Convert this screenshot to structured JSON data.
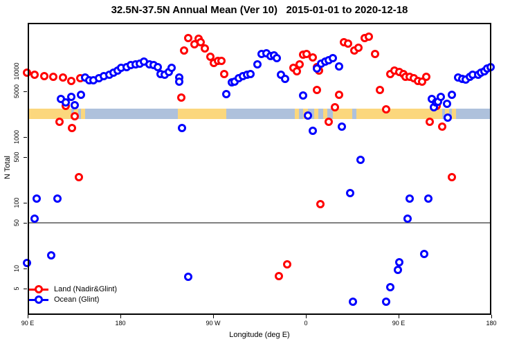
{
  "title": "32.5N-37.5N Annual Mean (Ver 10)   2015-01-01 to 2020-12-18",
  "chart_data": {
    "type": "scatter",
    "title": "32.5N-37.5N Annual Mean (Ver 10)   2015-01-01 to 2020-12-18",
    "xlabel": "Longitude (deg E)",
    "ylabel": "N Total",
    "x_axis": {
      "range_deg": [
        90,
        540
      ],
      "ticks_deg": [
        90,
        180,
        270,
        360,
        450,
        540
      ],
      "tick_labels": [
        "90 E",
        "180",
        "90 W",
        "0",
        "90 E",
        "180"
      ]
    },
    "y_axis": {
      "scale": "log10",
      "ticks": [
        10000,
        5000,
        1000,
        500,
        100,
        50,
        10,
        5
      ],
      "tick_labels": [
        "10000",
        "5000",
        "1000",
        "500",
        "100",
        "50",
        "10",
        "5"
      ]
    },
    "reference_line_N": 50,
    "reference_line_color": "#808080",
    "grid": false,
    "legend_position": "bottom-left",
    "series": [
      {
        "name": "Land (Nadir&Glint)",
        "color": "#FF0000",
        "points": [
          [
            89,
            9500
          ],
          [
            97,
            8900
          ],
          [
            106,
            8400
          ],
          [
            115,
            8200
          ],
          [
            124,
            8000
          ],
          [
            132,
            7100
          ],
          [
            141,
            7800
          ],
          [
            121,
            1700
          ],
          [
            127,
            2980
          ],
          [
            133,
            1370
          ],
          [
            136,
            2070
          ],
          [
            140,
            245
          ],
          [
            239,
            3980
          ],
          [
            242,
            20700
          ],
          [
            246,
            32000
          ],
          [
            252,
            25800
          ],
          [
            256,
            31400
          ],
          [
            258,
            27700
          ],
          [
            262,
            22300
          ],
          [
            267,
            16600
          ],
          [
            271,
            13400
          ],
          [
            275,
            14400
          ],
          [
            278,
            14400
          ],
          [
            281,
            9100
          ],
          [
            334,
            7.7
          ],
          [
            342,
            11.6
          ],
          [
            374,
            95
          ],
          [
            348,
            11300
          ],
          [
            351,
            10000
          ],
          [
            354,
            12700
          ],
          [
            357,
            17900
          ],
          [
            361,
            18300
          ],
          [
            367,
            16200
          ],
          [
            371,
            11600
          ],
          [
            373,
            10200
          ],
          [
            371,
            5190
          ],
          [
            382,
            1700
          ],
          [
            388,
            2840
          ],
          [
            392,
            4390
          ],
          [
            397,
            27700
          ],
          [
            401,
            26400
          ],
          [
            407,
            20700
          ],
          [
            411,
            22800
          ],
          [
            417,
            32000
          ],
          [
            421,
            33600
          ],
          [
            427,
            18300
          ],
          [
            432,
            5190
          ],
          [
            438,
            2650
          ],
          [
            442,
            9100
          ],
          [
            446,
            10200
          ],
          [
            451,
            9760
          ],
          [
            455,
            9100
          ],
          [
            457,
            8230
          ],
          [
            461,
            8230
          ],
          [
            465,
            7830
          ],
          [
            469,
            7120
          ],
          [
            473,
            6950
          ],
          [
            477,
            8230
          ],
          [
            480,
            1700
          ],
          [
            487,
            2980
          ],
          [
            492,
            1440
          ],
          [
            502,
            245
          ]
        ]
      },
      {
        "name": "Ocean (Glint)",
        "color": "#0000FF",
        "points": [
          [
            122,
            3800
          ],
          [
            127,
            3360
          ],
          [
            132,
            4070
          ],
          [
            136,
            3050
          ],
          [
            142,
            4390
          ],
          [
            146,
            8000
          ],
          [
            150,
            7300
          ],
          [
            154,
            7300
          ],
          [
            159,
            7800
          ],
          [
            164,
            8400
          ],
          [
            169,
            8900
          ],
          [
            173,
            9500
          ],
          [
            177,
            10300
          ],
          [
            181,
            11300
          ],
          [
            186,
            11600
          ],
          [
            190,
            12500
          ],
          [
            195,
            12800
          ],
          [
            199,
            13100
          ],
          [
            203,
            14000
          ],
          [
            208,
            12800
          ],
          [
            212,
            12500
          ],
          [
            216,
            11600
          ],
          [
            219,
            9100
          ],
          [
            223,
            8900
          ],
          [
            227,
            9800
          ],
          [
            230,
            11300
          ],
          [
            237,
            8000
          ],
          [
            237,
            7000
          ],
          [
            240,
            1370
          ],
          [
            246,
            7.5
          ],
          [
            283,
            4500
          ],
          [
            288,
            6800
          ],
          [
            291,
            7000
          ],
          [
            295,
            7800
          ],
          [
            299,
            8400
          ],
          [
            303,
            8900
          ],
          [
            306,
            9100
          ],
          [
            313,
            12800
          ],
          [
            317,
            18300
          ],
          [
            322,
            18800
          ],
          [
            326,
            17000
          ],
          [
            329,
            17500
          ],
          [
            332,
            15900
          ],
          [
            336,
            8900
          ],
          [
            340,
            7640
          ],
          [
            357,
            4290
          ],
          [
            362,
            2120
          ],
          [
            367,
            1250
          ],
          [
            371,
            11000
          ],
          [
            375,
            13100
          ],
          [
            379,
            14000
          ],
          [
            382,
            14800
          ],
          [
            386,
            15900
          ],
          [
            392,
            11900
          ],
          [
            395,
            1440
          ],
          [
            403,
            140
          ],
          [
            406,
            3.1
          ],
          [
            413,
            450
          ],
          [
            438,
            3.1
          ],
          [
            442,
            5.2
          ],
          [
            449,
            9.5
          ],
          [
            451,
            12.3
          ],
          [
            459,
            57
          ],
          [
            461,
            116
          ],
          [
            475,
            16.6
          ],
          [
            479,
            116
          ],
          [
            482,
            3800
          ],
          [
            484,
            2840
          ],
          [
            486,
            3360
          ],
          [
            488,
            3440
          ],
          [
            491,
            4070
          ],
          [
            497,
            3200
          ],
          [
            498,
            1970
          ],
          [
            502,
            4390
          ],
          [
            508,
            8000
          ],
          [
            512,
            7640
          ],
          [
            515,
            7470
          ],
          [
            519,
            8230
          ],
          [
            522,
            8900
          ],
          [
            527,
            8900
          ],
          [
            530,
            9500
          ],
          [
            533,
            10000
          ],
          [
            536,
            11000
          ],
          [
            539,
            11600
          ],
          [
            99,
            116
          ],
          [
            119,
            116
          ],
          [
            97,
            57
          ],
          [
            113,
            16
          ],
          [
            89,
            12
          ]
        ]
      }
    ],
    "land_ocean_band": {
      "description": "land/ocean strip map for 32.5N-37.5N",
      "land_color": "#FBD77D",
      "ocean_color": "#AEC1DC",
      "top_N": 2700,
      "bottom_N": 1900,
      "segments": [
        [
          90,
          132,
          "land"
        ],
        [
          132,
          135,
          "ocean"
        ],
        [
          135,
          139,
          "land"
        ],
        [
          139,
          142,
          "ocean"
        ],
        [
          142,
          146,
          "land"
        ],
        [
          146,
          236,
          "ocean"
        ],
        [
          236,
          283,
          "land"
        ],
        [
          283,
          349,
          "ocean"
        ],
        [
          349,
          353,
          "land"
        ],
        [
          353,
          357,
          "ocean"
        ],
        [
          357,
          362,
          "land"
        ],
        [
          362,
          368,
          "ocean"
        ],
        [
          368,
          372,
          "land"
        ],
        [
          372,
          377,
          "ocean"
        ],
        [
          377,
          381,
          "land"
        ],
        [
          381,
          386,
          "ocean"
        ],
        [
          386,
          405,
          "land"
        ],
        [
          405,
          409,
          "ocean"
        ],
        [
          409,
          492,
          "land"
        ],
        [
          492,
          495,
          "ocean"
        ],
        [
          495,
          499,
          "land"
        ],
        [
          499,
          502,
          "ocean"
        ],
        [
          502,
          506,
          "land"
        ],
        [
          506,
          540,
          "ocean"
        ]
      ]
    }
  },
  "legend": {
    "items": [
      {
        "label": "Land (Nadir&Glint)",
        "color": "#FF0000"
      },
      {
        "label": "Ocean (Glint)",
        "color": "#0000FF"
      }
    ]
  }
}
